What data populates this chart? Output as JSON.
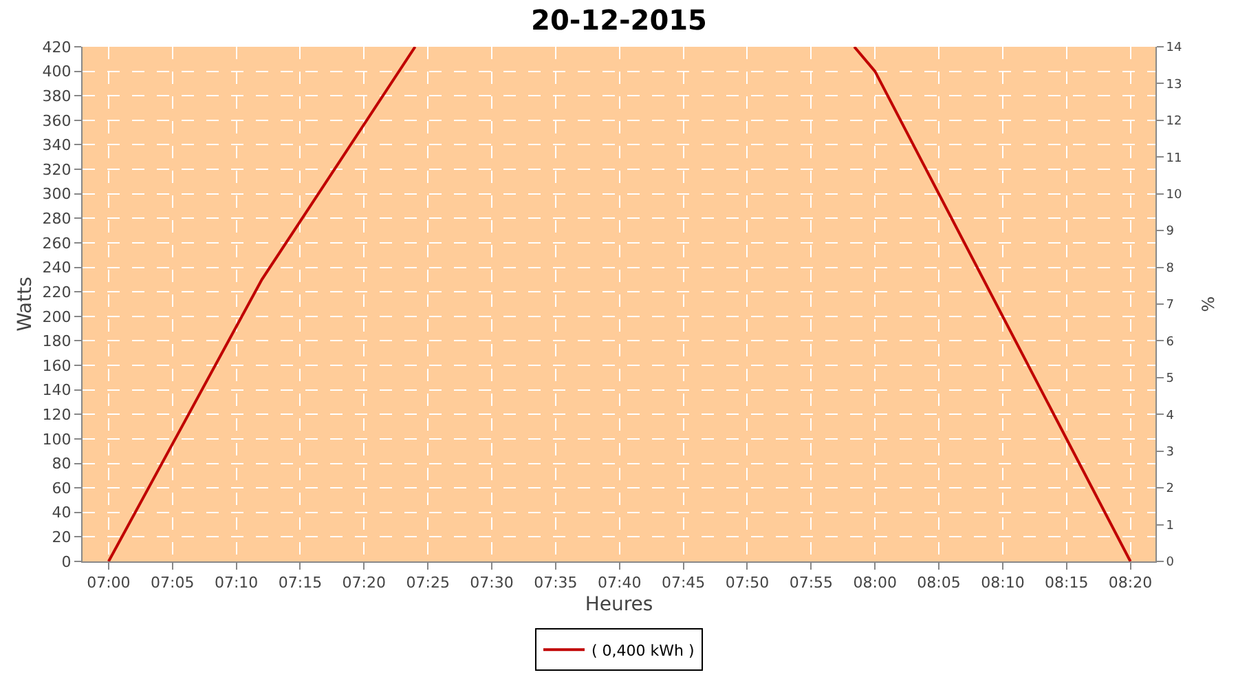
{
  "chart_data": {
    "type": "line",
    "title": "20-12-2015",
    "xlabel": "Heures",
    "ylabel": "Watts",
    "y2label": "%",
    "series": [
      {
        "name": "( 0,400 kWh )",
        "color": "#c00000",
        "x": [
          7.0,
          7.2,
          7.4,
          7.7,
          7.973,
          8.0,
          8.3333
        ],
        "values": [
          0,
          230,
          420,
          null,
          420,
          400,
          0
        ]
      }
    ],
    "xlim": [
      6.966,
      8.366
    ],
    "xticks": [
      {
        "value": 7.0,
        "label": "07:00"
      },
      {
        "value": 7.0833,
        "label": "07:05"
      },
      {
        "value": 7.1667,
        "label": "07:10"
      },
      {
        "value": 7.25,
        "label": "07:15"
      },
      {
        "value": 7.3333,
        "label": "07:20"
      },
      {
        "value": 7.4167,
        "label": "07:25"
      },
      {
        "value": 7.5,
        "label": "07:30"
      },
      {
        "value": 7.5833,
        "label": "07:35"
      },
      {
        "value": 7.6667,
        "label": "07:40"
      },
      {
        "value": 7.75,
        "label": "07:45"
      },
      {
        "value": 7.8333,
        "label": "07:50"
      },
      {
        "value": 7.9167,
        "label": "07:55"
      },
      {
        "value": 8.0,
        "label": "08:00"
      },
      {
        "value": 8.0833,
        "label": "08:05"
      },
      {
        "value": 8.1667,
        "label": "08:10"
      },
      {
        "value": 8.25,
        "label": "08:15"
      },
      {
        "value": 8.3333,
        "label": "08:20"
      }
    ],
    "ylim": [
      0,
      420
    ],
    "yticks": [
      0,
      20,
      40,
      60,
      80,
      100,
      120,
      140,
      160,
      180,
      200,
      220,
      240,
      260,
      280,
      300,
      320,
      340,
      360,
      380,
      400,
      420
    ],
    "y2lim": [
      0,
      14
    ],
    "y2ticks": [
      0,
      1,
      2,
      3,
      4,
      5,
      6,
      7,
      8,
      9,
      10,
      11,
      12,
      13,
      14
    ],
    "grid": true,
    "legend": "bottom",
    "marker": "none",
    "line_style": "solid"
  }
}
